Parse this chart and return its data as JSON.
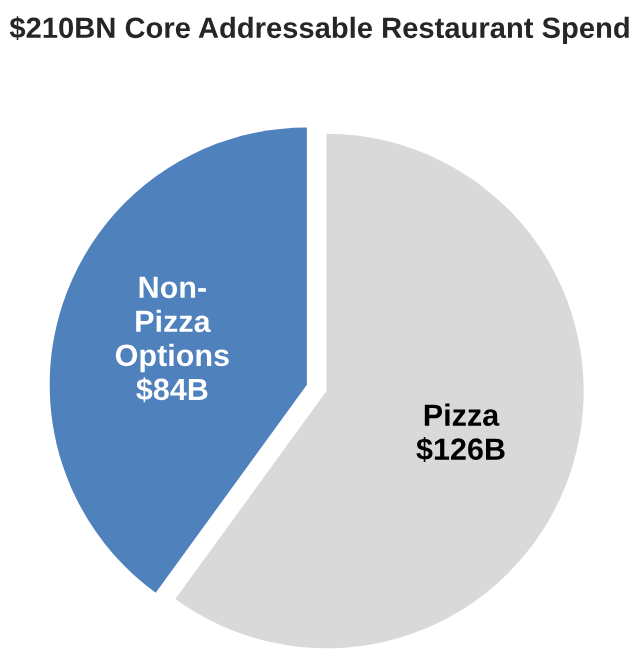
{
  "chart_data": {
    "type": "pie",
    "title": "$210BN Core Addressable Restaurant Spend",
    "categories": [
      "Non-\nPizza\nOptions",
      "Pizza"
    ],
    "values": [
      84,
      126
    ],
    "value_labels": [
      "$84B",
      "$126B"
    ],
    "colors": [
      "#4f81bd",
      "#d9d9d9"
    ],
    "legend": false
  }
}
